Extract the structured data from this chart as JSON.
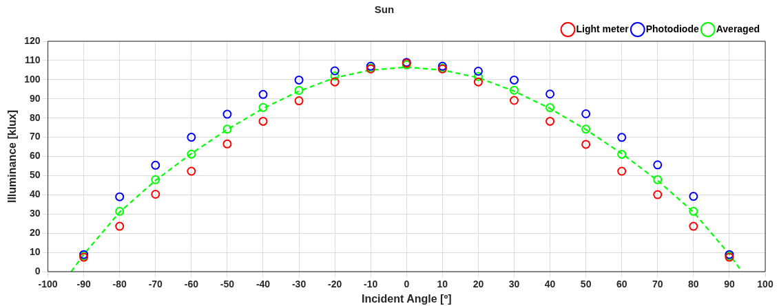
{
  "chart_data": {
    "type": "scatter",
    "title": "Sun",
    "xlabel": "Incident Angle [º]",
    "ylabel": "Illuminance [klux]",
    "x": [
      -90,
      -80,
      -70,
      -60,
      -50,
      -40,
      -30,
      -20,
      -10,
      0,
      10,
      20,
      30,
      40,
      50,
      60,
      70,
      80,
      90
    ],
    "xlim": [
      -100,
      100
    ],
    "xticks": [
      -100,
      -90,
      -80,
      -70,
      -60,
      -50,
      -40,
      -30,
      -20,
      -10,
      0,
      10,
      20,
      30,
      40,
      50,
      60,
      70,
      80,
      90,
      100
    ],
    "ylim": [
      0,
      120
    ],
    "yticks": [
      0,
      10,
      20,
      30,
      40,
      50,
      60,
      70,
      80,
      90,
      100,
      110,
      120
    ],
    "grid": true,
    "legend": "top right",
    "marker": "circle",
    "series": [
      {
        "name": "Light meter",
        "color": "#ff0000",
        "values": [
          7.5,
          23.6,
          40.3,
          52.3,
          66.5,
          78.3,
          89,
          98.8,
          105.6,
          108.5,
          105.6,
          98.8,
          89.2,
          78.3,
          66.3,
          52.3,
          40.1,
          23.6,
          7.5
        ]
      },
      {
        "name": "Photodiode",
        "color": "#0000ff",
        "values": [
          8.9,
          39,
          55.4,
          70,
          82,
          92.3,
          99.8,
          104.6,
          107,
          109,
          107,
          104.4,
          99.8,
          92.5,
          82.2,
          69.9,
          55.6,
          39.2,
          8.9
        ]
      },
      {
        "name": "Averaged",
        "color": "#00ff00",
        "values": [
          8.2,
          31.4,
          47.9,
          61.2,
          74.2,
          85.5,
          94.4,
          101.9,
          106,
          107.7,
          106,
          101.6,
          94.5,
          85.4,
          74.2,
          61.1,
          47.9,
          31.4,
          8.2
        ]
      },
      {
        "type": "line",
        "color": "#00ff00",
        "line_style": "dashed",
        "marker": "none",
        "x": [
          -93.5,
          -90,
          -80,
          -70,
          -60,
          -50,
          -40,
          -30,
          -20,
          -10,
          0,
          10,
          20,
          30,
          40,
          50,
          60,
          70,
          80,
          90,
          93.5
        ],
        "values": [
          0,
          9,
          31,
          47.5,
          61.5,
          74,
          85,
          94,
          101,
          105,
          106.5,
          105,
          101,
          94,
          85,
          74,
          61.5,
          47.5,
          31,
          9,
          0
        ]
      }
    ]
  }
}
